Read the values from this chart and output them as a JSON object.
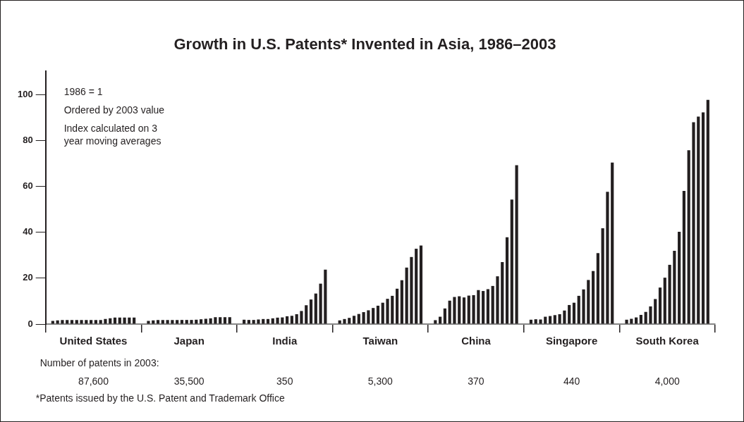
{
  "chart_data": {
    "type": "bar",
    "title": "Growth in U.S. Patents* Invented in Asia, 1986–2003",
    "categories": [
      "United States",
      "Japan",
      "India",
      "Taiwan",
      "China",
      "Singapore",
      "South Korea"
    ],
    "series": [
      {
        "color": "#231f20",
        "values": [
          1.4,
          1.4,
          1.9,
          1.6,
          1.7,
          1.9,
          1.9
        ]
      },
      {
        "color": "#231f20",
        "values": [
          1.6,
          1.6,
          1.8,
          2.2,
          3.2,
          2.1,
          2.3
        ]
      },
      {
        "color": "#231f20",
        "values": [
          1.8,
          1.8,
          1.8,
          2.7,
          6.8,
          2.0,
          2.9
        ]
      },
      {
        "color": "#231f20",
        "values": [
          1.8,
          1.8,
          2.0,
          3.6,
          10.2,
          3.2,
          4.0
        ]
      },
      {
        "color": "#231f20",
        "values": [
          1.8,
          1.8,
          2.2,
          4.4,
          11.8,
          3.5,
          5.3
        ]
      },
      {
        "color": "#231f20",
        "values": [
          1.8,
          1.8,
          2.2,
          5.2,
          12.1,
          3.9,
          7.7
        ]
      },
      {
        "color": "#231f20",
        "values": [
          1.8,
          1.8,
          2.5,
          6.0,
          11.6,
          4.3,
          10.9
        ]
      },
      {
        "color": "#231f20",
        "values": [
          1.8,
          1.8,
          2.8,
          7.0,
          12.4,
          5.9,
          15.9
        ]
      },
      {
        "color": "#231f20",
        "values": [
          1.8,
          1.8,
          2.9,
          8.0,
          12.6,
          8.3,
          20.2
        ]
      },
      {
        "color": "#231f20",
        "values": [
          1.8,
          1.8,
          3.4,
          9.3,
          14.8,
          9.3,
          25.8
        ]
      },
      {
        "color": "#231f20",
        "values": [
          1.8,
          1.9,
          3.6,
          11.0,
          14.4,
          12.3,
          31.9
        ]
      },
      {
        "color": "#231f20",
        "values": [
          2.2,
          2.1,
          4.3,
          12.3,
          15.2,
          15.1,
          40.2
        ]
      },
      {
        "color": "#231f20",
        "values": [
          2.5,
          2.3,
          5.7,
          15.4,
          16.6,
          19.2,
          58.0
        ]
      },
      {
        "color": "#231f20",
        "values": [
          2.8,
          2.5,
          8.2,
          19.1,
          20.8,
          23.1,
          75.7
        ]
      },
      {
        "color": "#231f20",
        "values": [
          2.8,
          3.0,
          10.7,
          24.6,
          27.0,
          30.9,
          87.9
        ]
      },
      {
        "color": "#231f20",
        "values": [
          2.8,
          3.0,
          13.3,
          29.2,
          37.8,
          41.7,
          90.3
        ]
      },
      {
        "color": "#231f20",
        "values": [
          2.8,
          3.0,
          17.6,
          32.8,
          54.2,
          57.6,
          92.2
        ]
      },
      {
        "color": "#231f20",
        "values": [
          2.8,
          3.0,
          23.7,
          34.2,
          69.2,
          70.3,
          97.6
        ]
      }
    ],
    "ylim": [
      0,
      110
    ],
    "yticks": [
      0,
      20,
      40,
      60,
      80,
      100
    ],
    "grid": false,
    "legend": false,
    "annotations": [
      "1986 = 1",
      "Ordered by 2003 value",
      "Index calculated on 3 year moving averages",
      "Number of patents in 2003:",
      "87,600",
      "35,500",
      "350",
      "5,300",
      "370",
      "440",
      "4,000",
      "*Patents issued by the U.S. Patent and Trademark Office"
    ]
  }
}
